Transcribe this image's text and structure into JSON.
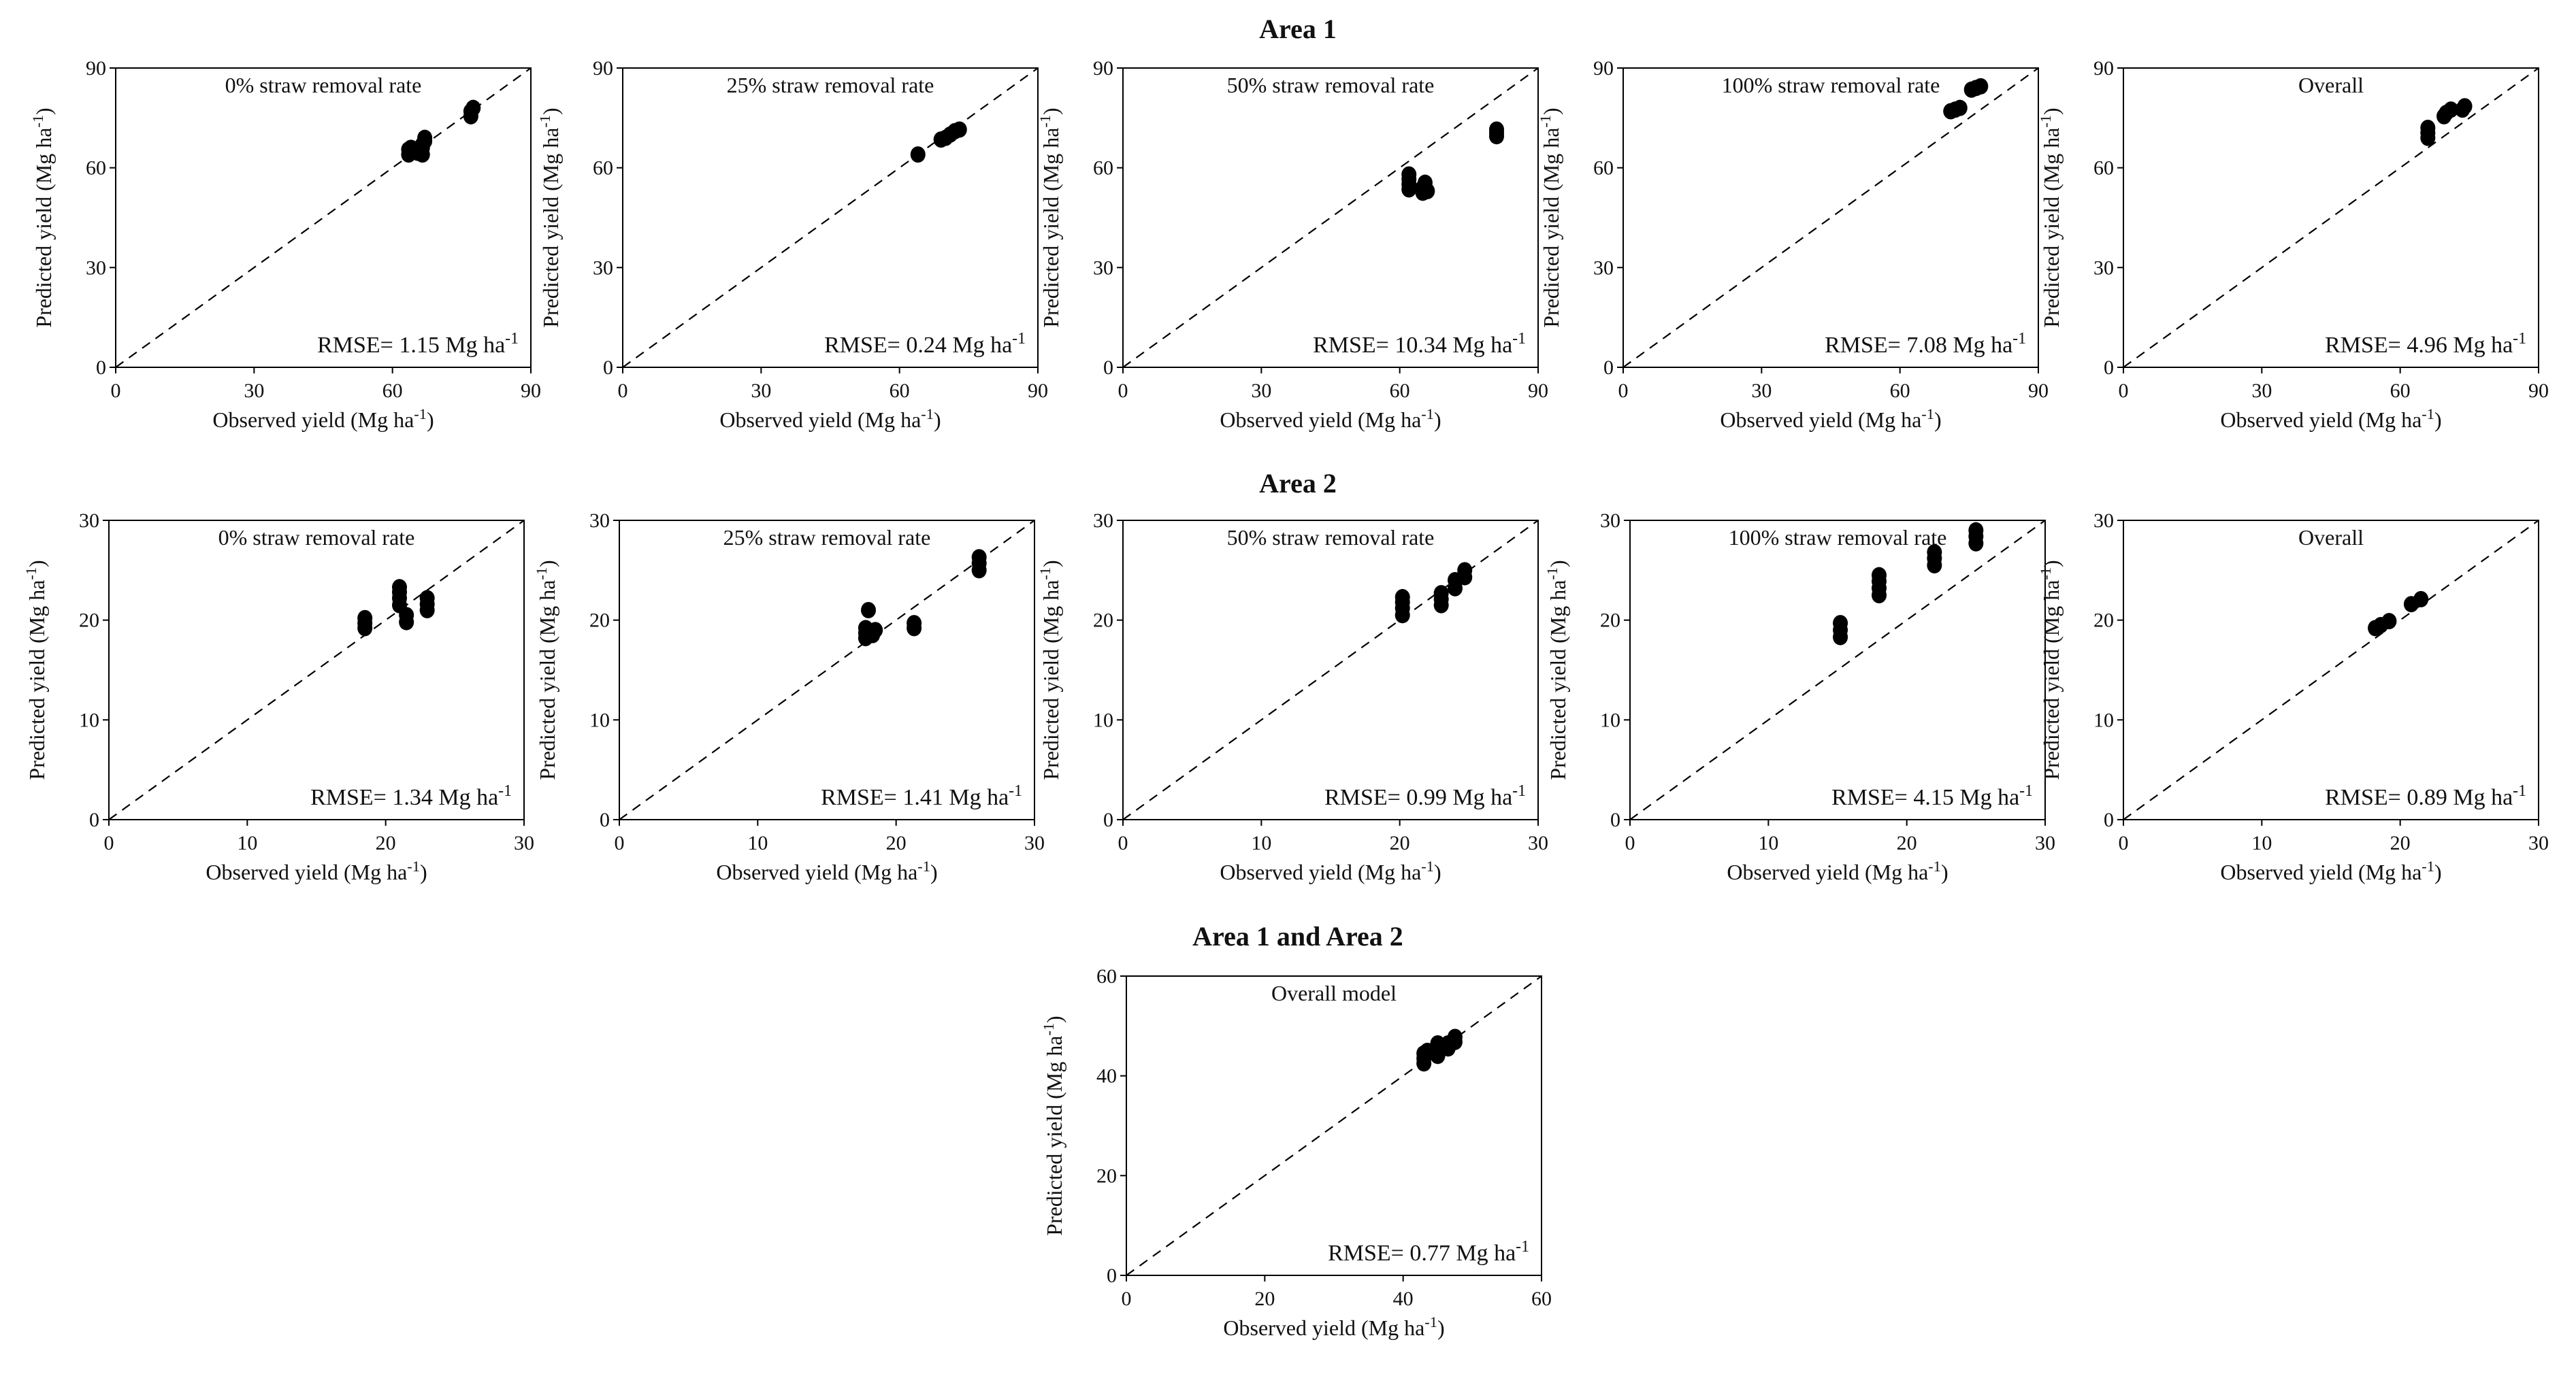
{
  "figure": {
    "sections": [
      {
        "title": "Area 1"
      },
      {
        "title": "Area 2"
      },
      {
        "title": "Area 1 and Area 2"
      }
    ]
  },
  "chart_data": [
    {
      "type": "scatter",
      "section": "Area 1",
      "title": "0% straw removal rate",
      "xlabel": "Observed yield (Mg ha-1)",
      "ylabel": "Predicted yield (Mg ha-1)",
      "xlim": [
        0,
        90
      ],
      "ylim": [
        0,
        90
      ],
      "ticks": [
        0,
        30,
        60,
        90
      ],
      "reference_line": "1:1 dashed",
      "rmse": "RMSE= 1.15 Mg ha-1",
      "points": [
        [
          63.5,
          64
        ],
        [
          63.5,
          65.5
        ],
        [
          64,
          66
        ],
        [
          65.5,
          64.5
        ],
        [
          66.5,
          64
        ],
        [
          66.5,
          66
        ],
        [
          67,
          68
        ],
        [
          67,
          69
        ],
        [
          66.5,
          67
        ],
        [
          77,
          75.5
        ],
        [
          77,
          77
        ],
        [
          77.5,
          78
        ]
      ]
    },
    {
      "type": "scatter",
      "section": "Area 1",
      "title": "25% straw removal rate",
      "xlabel": "Observed yield (Mg ha-1)",
      "ylabel": "Predicted yield (Mg ha-1)",
      "xlim": [
        0,
        90
      ],
      "ylim": [
        0,
        90
      ],
      "ticks": [
        0,
        30,
        60,
        90
      ],
      "reference_line": "1:1 dashed",
      "rmse": "RMSE= 0.24 Mg ha-1",
      "points": [
        [
          64,
          64
        ],
        [
          69,
          68.5
        ],
        [
          70,
          69
        ],
        [
          71,
          70
        ],
        [
          72,
          71
        ],
        [
          73,
          71.5
        ]
      ]
    },
    {
      "type": "scatter",
      "section": "Area 1",
      "title": "50% straw removal rate",
      "xlabel": "Observed yield (Mg ha-1)",
      "ylabel": "Predicted yield (Mg ha-1)",
      "xlim": [
        0,
        90
      ],
      "ylim": [
        0,
        90
      ],
      "ticks": [
        0,
        30,
        60,
        90
      ],
      "reference_line": "1:1 dashed",
      "rmse": "RMSE= 10.34 Mg ha-1",
      "points": [
        [
          62,
          53.5
        ],
        [
          62,
          55
        ],
        [
          62,
          56.5
        ],
        [
          62,
          58
        ],
        [
          65,
          52.5
        ],
        [
          65,
          54
        ],
        [
          65.5,
          55.5
        ],
        [
          66,
          53
        ],
        [
          81,
          69.5
        ],
        [
          81,
          70.5
        ],
        [
          81,
          71.5
        ]
      ]
    },
    {
      "type": "scatter",
      "section": "Area 1",
      "title": "100% straw removal rate",
      "xlabel": "Observed yield (Mg ha-1)",
      "ylabel": "Predicted yield (Mg ha-1)",
      "xlim": [
        0,
        90
      ],
      "ylim": [
        0,
        90
      ],
      "ticks": [
        0,
        30,
        60,
        90
      ],
      "reference_line": "1:1 dashed",
      "rmse": "RMSE= 7.08 Mg ha-1",
      "points": [
        [
          71,
          77
        ],
        [
          72,
          77.5
        ],
        [
          73,
          78
        ],
        [
          75.5,
          83.5
        ],
        [
          76.5,
          84
        ],
        [
          77.5,
          84.5
        ]
      ]
    },
    {
      "type": "scatter",
      "section": "Area 1",
      "title": "Overall",
      "xlabel": "Observed yield (Mg ha-1)",
      "ylabel": "Predicted yield (Mg ha-1)",
      "xlim": [
        0,
        90
      ],
      "ylim": [
        0,
        90
      ],
      "ticks": [
        0,
        30,
        60,
        90
      ],
      "reference_line": "1:1 dashed",
      "rmse": "RMSE= 4.96 Mg ha-1",
      "points": [
        [
          66,
          69
        ],
        [
          66,
          70.5
        ],
        [
          66,
          72
        ],
        [
          69.5,
          75.5
        ],
        [
          70,
          76.5
        ],
        [
          71,
          77.5
        ],
        [
          73.5,
          77.5
        ],
        [
          74,
          78.5
        ]
      ]
    },
    {
      "type": "scatter",
      "section": "Area 2",
      "title": "0% straw removal rate",
      "xlabel": "Observed yield (Mg ha-1)",
      "ylabel": "Predicted yield (Mg ha-1)",
      "xlim": [
        0,
        30
      ],
      "ylim": [
        0,
        30
      ],
      "ticks": [
        0,
        10,
        20,
        30
      ],
      "reference_line": "1:1 dashed",
      "rmse": "RMSE= 1.34 Mg ha-1",
      "points": [
        [
          18.5,
          19.2
        ],
        [
          18.5,
          19.7
        ],
        [
          18.5,
          20.2
        ],
        [
          21,
          21.5
        ],
        [
          21,
          22.2
        ],
        [
          21,
          22.8
        ],
        [
          21,
          23.3
        ],
        [
          21.5,
          19.8
        ],
        [
          21.5,
          20.5
        ],
        [
          23,
          21
        ],
        [
          23,
          21.6
        ],
        [
          23,
          22.2
        ]
      ]
    },
    {
      "type": "scatter",
      "section": "Area 2",
      "title": "25% straw removal rate",
      "xlabel": "Observed yield (Mg ha-1)",
      "ylabel": "Predicted yield (Mg ha-1)",
      "xlim": [
        0,
        30
      ],
      "ylim": [
        0,
        30
      ],
      "ticks": [
        0,
        10,
        20,
        30
      ],
      "reference_line": "1:1 dashed",
      "rmse": "RMSE= 1.41 Mg ha-1",
      "points": [
        [
          17.8,
          18.2
        ],
        [
          17.8,
          18.7
        ],
        [
          17.8,
          19.2
        ],
        [
          18,
          21
        ],
        [
          18.3,
          18.5
        ],
        [
          18.5,
          19
        ],
        [
          21.3,
          19.2
        ],
        [
          21.3,
          19.7
        ],
        [
          26,
          25
        ],
        [
          26,
          25.7
        ],
        [
          26,
          26.3
        ]
      ]
    },
    {
      "type": "scatter",
      "section": "Area 2",
      "title": "50% straw removal rate",
      "xlabel": "Observed yield (Mg ha-1)",
      "ylabel": "Predicted yield (Mg ha-1)",
      "xlim": [
        0,
        30
      ],
      "ylim": [
        0,
        30
      ],
      "ticks": [
        0,
        10,
        20,
        30
      ],
      "reference_line": "1:1 dashed",
      "rmse": "RMSE= 0.99 Mg ha-1",
      "points": [
        [
          20.2,
          20.5
        ],
        [
          20.2,
          21.2
        ],
        [
          20.2,
          21.8
        ],
        [
          20.2,
          22.3
        ],
        [
          23,
          21.5
        ],
        [
          23,
          22.1
        ],
        [
          23,
          22.7
        ],
        [
          24,
          23.2
        ],
        [
          24,
          24
        ],
        [
          24.7,
          24.3
        ],
        [
          24.7,
          25
        ]
      ]
    },
    {
      "type": "scatter",
      "section": "Area 2",
      "title": "100% straw removal rate",
      "xlabel": "Observed yield (Mg ha-1)",
      "ylabel": "Predicted yield (Mg ha-1)",
      "xlim": [
        0,
        30
      ],
      "ylim": [
        0,
        30
      ],
      "ticks": [
        0,
        10,
        20,
        30
      ],
      "reference_line": "1:1 dashed",
      "rmse": "RMSE= 4.15 Mg ha-1",
      "points": [
        [
          15.2,
          18.3
        ],
        [
          15.2,
          19
        ],
        [
          15.2,
          19.7
        ],
        [
          18,
          22.5
        ],
        [
          18,
          23.2
        ],
        [
          18,
          23.9
        ],
        [
          18,
          24.5
        ],
        [
          22,
          25.5
        ],
        [
          22,
          26.2
        ],
        [
          22,
          26.8
        ],
        [
          25,
          27.7
        ],
        [
          25,
          28.4
        ],
        [
          25,
          29
        ]
      ]
    },
    {
      "type": "scatter",
      "section": "Area 2",
      "title": "Overall",
      "xlabel": "Observed yield (Mg ha-1)",
      "ylabel": "Predicted yield (Mg ha-1)",
      "xlim": [
        0,
        30
      ],
      "ylim": [
        0,
        30
      ],
      "ticks": [
        0,
        10,
        20,
        30
      ],
      "reference_line": "1:1 dashed",
      "rmse": "RMSE= 0.89 Mg ha-1",
      "points": [
        [
          18.2,
          19.2
        ],
        [
          18.6,
          19.5
        ],
        [
          19.2,
          19.9
        ],
        [
          20.8,
          21.6
        ],
        [
          21.5,
          22.1
        ]
      ]
    },
    {
      "type": "scatter",
      "section": "Area 1 and Area 2",
      "title": "Overall model",
      "xlabel": "Observed yield (Mg ha-1)",
      "ylabel": "Predicted yield (Mg ha-1)",
      "xlim": [
        0,
        60
      ],
      "ylim": [
        0,
        60
      ],
      "ticks": [
        0,
        20,
        40,
        60
      ],
      "reference_line": "1:1 dashed",
      "rmse": "RMSE= 0.77 Mg ha-1",
      "points": [
        [
          43,
          42.5
        ],
        [
          43,
          43.5
        ],
        [
          43,
          44.5
        ],
        [
          43.5,
          45
        ],
        [
          45,
          44
        ],
        [
          45,
          45.5
        ],
        [
          45,
          46.5
        ],
        [
          46.5,
          45.5
        ],
        [
          46.5,
          46.5
        ],
        [
          47.5,
          46.8
        ],
        [
          47.5,
          47.8
        ]
      ]
    }
  ]
}
